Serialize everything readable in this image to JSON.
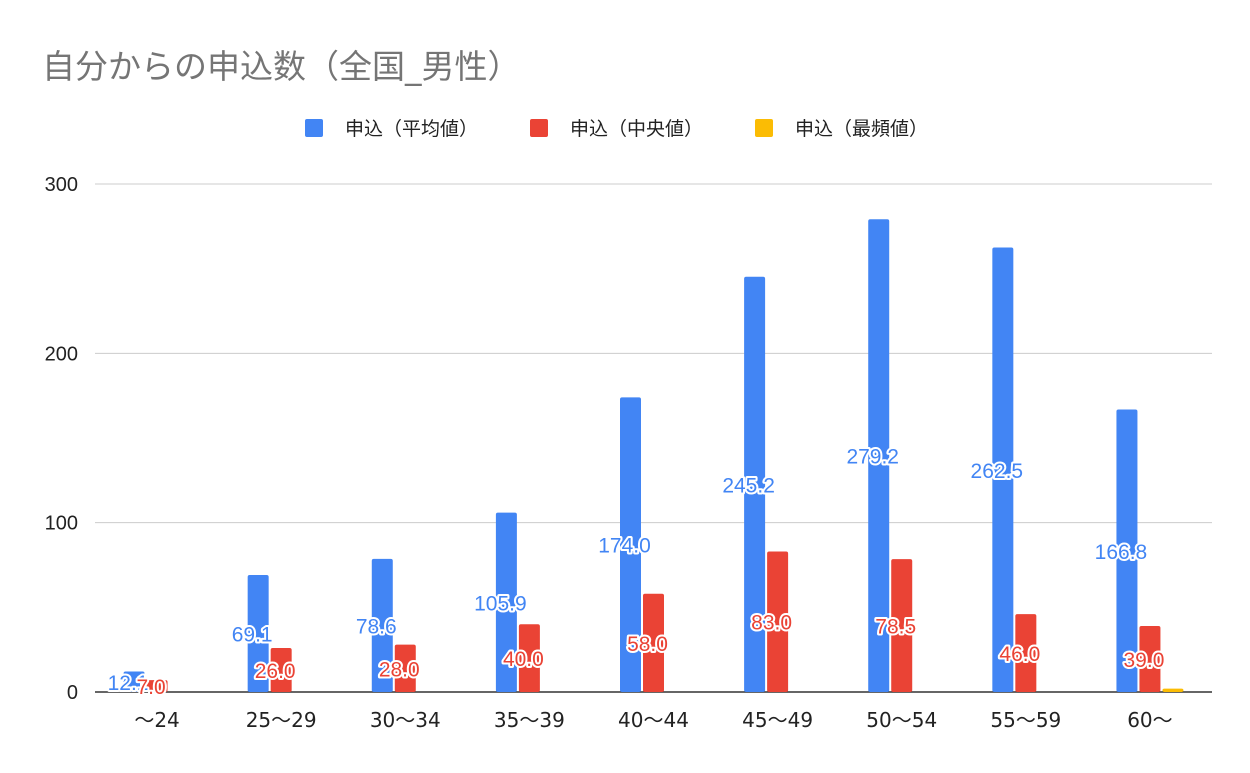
{
  "chart_data": {
    "type": "bar",
    "title": "自分からの申込数（全国_男性）",
    "categories": [
      "～24",
      "25～29",
      "30～34",
      "35～39",
      "40～44",
      "45～49",
      "50～54",
      "55～59",
      "60～"
    ],
    "series": [
      {
        "name": "申込（平均値）",
        "color": "#4285f4",
        "values": [
          12.1,
          69.1,
          78.6,
          105.9,
          174.0,
          245.2,
          279.2,
          262.5,
          166.8
        ],
        "labels": [
          "12.1",
          "69.1",
          "78.6",
          "105.9",
          "174.0",
          "245.2",
          "279.2",
          "262.5",
          "166.8"
        ]
      },
      {
        "name": "申込（中央値）",
        "color": "#ea4335",
        "values": [
          7.0,
          26.0,
          28.0,
          40.0,
          58.0,
          83.0,
          78.5,
          46.0,
          39.0
        ],
        "labels": [
          "7.0",
          "26.0",
          "28.0",
          "40.0",
          "58.0",
          "83.0",
          "78.5",
          "46.0",
          "39.0"
        ]
      },
      {
        "name": "申込（最頻値）",
        "color": "#fbbc04",
        "values": [
          0,
          0,
          0,
          0,
          0,
          0,
          0,
          0,
          2
        ],
        "labels": []
      }
    ],
    "yticks": [
      "0",
      "100",
      "200",
      "300"
    ],
    "ylim": [
      0,
      300
    ],
    "grid": true,
    "legend": "top-center",
    "xlabel": "",
    "ylabel": ""
  }
}
